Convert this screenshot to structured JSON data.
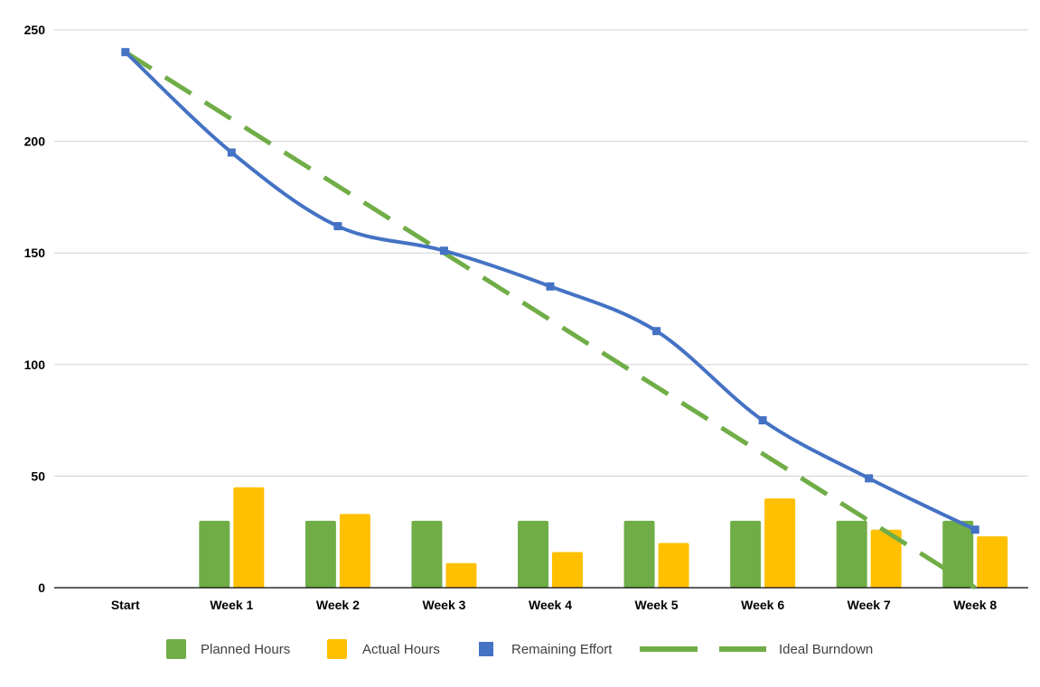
{
  "chart_data": {
    "type": "bar",
    "title": "",
    "xlabel": "",
    "ylabel": "",
    "ylim": [
      0,
      250
    ],
    "yticks": [
      0,
      50,
      100,
      150,
      200,
      250
    ],
    "grid": true,
    "legend_position": "bottom",
    "categories": [
      "Start",
      "Week 1",
      "Week 2",
      "Week 3",
      "Week 4",
      "Week 5",
      "Week 6",
      "Week 7",
      "Week 8"
    ],
    "series": [
      {
        "name": "Planned Hours",
        "kind": "bar",
        "color": "#70ad47",
        "values": [
          0,
          30,
          30,
          30,
          30,
          30,
          30,
          30,
          30
        ]
      },
      {
        "name": "Actual Hours",
        "kind": "bar",
        "color": "#ffc000",
        "values": [
          0,
          45,
          33,
          11,
          16,
          20,
          40,
          26,
          23
        ]
      },
      {
        "name": "Remaining Effort",
        "kind": "line",
        "style": "smooth-solid-with-square-markers",
        "color": "#4472c4",
        "values": [
          240,
          195,
          162,
          151,
          135,
          115,
          75,
          49,
          26
        ]
      },
      {
        "name": "Ideal Burndown",
        "kind": "line",
        "style": "dashed",
        "color": "#70ad47",
        "values": [
          240,
          210,
          180,
          150,
          120,
          90,
          60,
          30,
          0
        ]
      }
    ]
  }
}
